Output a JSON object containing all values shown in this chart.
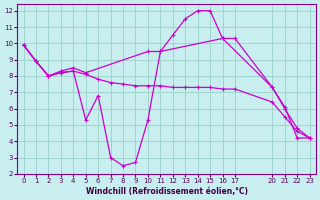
{
  "xlabel": "Windchill (Refroidissement éolien,°C)",
  "background_color": "#c8eef0",
  "grid_color": "#a0d4cc",
  "line_color": "#cc00cc",
  "xlim": [
    -0.5,
    23.5
  ],
  "ylim": [
    2,
    12.4
  ],
  "xtick_labels": [
    "0",
    "1",
    "2",
    "3",
    "4",
    "5",
    "6",
    "7",
    "8",
    "9",
    "10",
    "11",
    "12",
    "13",
    "14",
    "15",
    "16",
    "17",
    "20",
    "21",
    "22",
    "23"
  ],
  "xtick_positions": [
    0,
    1,
    2,
    3,
    4,
    5,
    6,
    7,
    8,
    9,
    10,
    11,
    12,
    13,
    14,
    15,
    16,
    17,
    20,
    21,
    22,
    23
  ],
  "yticks": [
    2,
    3,
    4,
    5,
    6,
    7,
    8,
    9,
    10,
    11,
    12
  ],
  "series": [
    {
      "x": [
        0,
        1,
        2,
        3,
        4,
        5,
        10,
        11,
        16,
        20,
        21,
        22,
        23
      ],
      "y": [
        9.9,
        8.9,
        8.0,
        8.3,
        8.5,
        8.2,
        9.5,
        9.5,
        10.3,
        7.3,
        6.0,
        4.8,
        4.2
      ]
    },
    {
      "x": [
        0,
        1,
        2,
        3,
        4,
        5,
        6,
        7,
        8,
        9,
        10,
        11,
        12,
        13,
        14,
        15,
        16,
        17,
        20,
        21,
        22,
        23
      ],
      "y": [
        9.9,
        8.9,
        8.0,
        8.2,
        8.3,
        8.1,
        7.8,
        7.6,
        7.5,
        7.4,
        7.4,
        7.4,
        7.3,
        7.3,
        7.3,
        7.3,
        7.2,
        7.2,
        6.4,
        5.5,
        4.6,
        4.2
      ]
    },
    {
      "x": [
        0,
        1,
        2,
        3,
        4,
        5,
        6,
        7,
        8,
        9,
        10,
        11,
        12,
        13,
        14,
        15,
        16,
        17,
        20,
        21,
        22,
        23
      ],
      "y": [
        9.9,
        8.9,
        8.0,
        8.2,
        8.3,
        5.3,
        6.8,
        3.0,
        2.5,
        2.7,
        5.3,
        9.5,
        10.5,
        11.5,
        12.0,
        12.0,
        10.3,
        10.3,
        7.3,
        6.1,
        4.2,
        4.2
      ]
    }
  ]
}
